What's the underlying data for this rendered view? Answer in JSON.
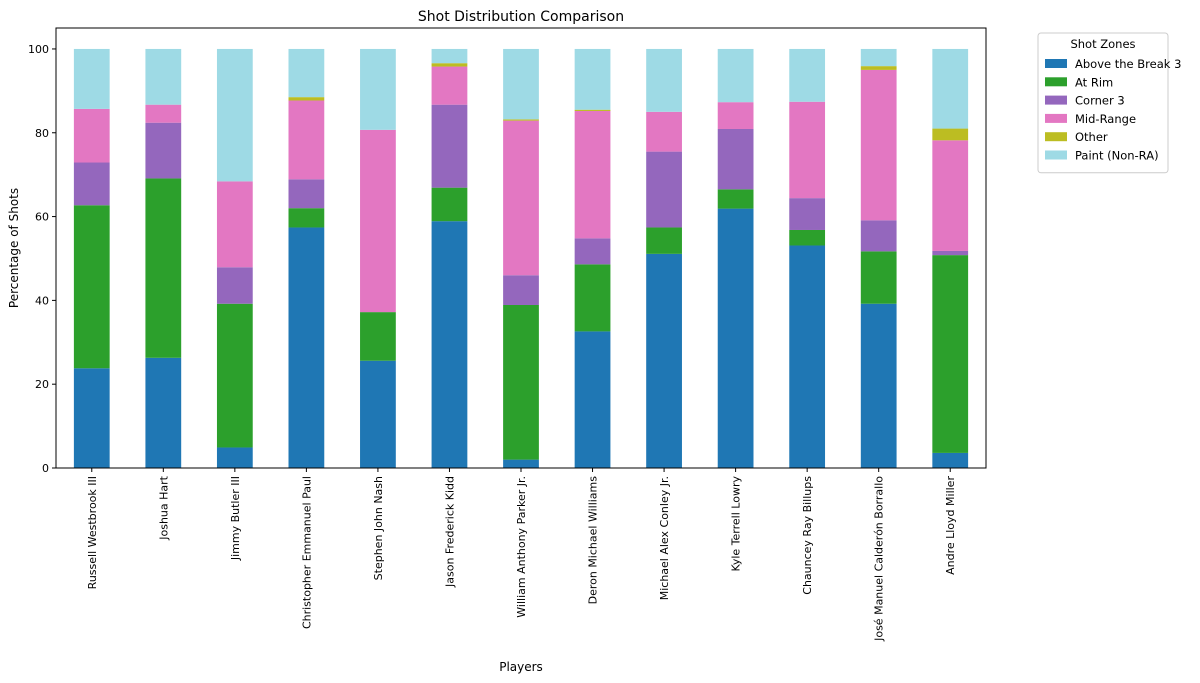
{
  "chart_data": {
    "type": "bar",
    "stacked": true,
    "title": "Shot Distribution Comparison",
    "xlabel": "Players",
    "ylabel": "Percentage of Shots",
    "ylim": [
      0,
      105
    ],
    "yticks": [
      0,
      20,
      40,
      60,
      80,
      100
    ],
    "grid": false,
    "legend": {
      "title": "Shot Zones",
      "placement": "outside upper right"
    },
    "categories": [
      "Russell Westbrook III",
      "Joshua Hart",
      "Jimmy Butler III",
      "Christopher Emmanuel Paul",
      "Stephen John Nash",
      "Jason Frederick Kidd",
      "William Anthony Parker Jr.",
      "Deron Michael Williams",
      "Michael Alex Conley Jr.",
      "Kyle Terrell Lowry",
      "Chauncey Ray Billups",
      "José Manuel Calderón Borrallo",
      "Andre Lloyd Miller"
    ],
    "series": [
      {
        "name": "Above the Break 3",
        "color": "#1f77b4",
        "values": [
          23.8,
          26.3,
          4.9,
          57.4,
          25.6,
          58.9,
          2.0,
          32.6,
          51.1,
          61.9,
          53.1,
          39.2,
          3.6
        ]
      },
      {
        "name": "At Rim",
        "color": "#2ca02c",
        "values": [
          38.9,
          42.8,
          34.3,
          4.6,
          11.6,
          8.0,
          36.9,
          16.0,
          6.3,
          4.6,
          3.7,
          12.5,
          47.2
        ]
      },
      {
        "name": "Corner 3",
        "color": "#9467bd",
        "values": [
          10.2,
          13.3,
          8.7,
          6.9,
          0.0,
          19.8,
          7.1,
          6.2,
          18.1,
          14.4,
          7.6,
          7.4,
          1.0
        ]
      },
      {
        "name": "Mid-Range",
        "color": "#e377c2",
        "values": [
          12.8,
          4.3,
          20.5,
          18.8,
          43.5,
          9.1,
          36.9,
          30.4,
          9.5,
          6.4,
          23.0,
          35.9,
          26.4
        ]
      },
      {
        "name": "Other",
        "color": "#bcbd22",
        "values": [
          0.0,
          0.0,
          0.0,
          0.8,
          0.0,
          0.8,
          0.3,
          0.3,
          0.0,
          0.0,
          0.0,
          0.9,
          2.8
        ]
      },
      {
        "name": "Paint (Non-RA)",
        "color": "#9edae5",
        "values": [
          14.3,
          13.3,
          31.6,
          11.5,
          19.3,
          3.4,
          16.8,
          14.5,
          15.0,
          12.7,
          12.6,
          4.1,
          19.0
        ]
      }
    ]
  }
}
